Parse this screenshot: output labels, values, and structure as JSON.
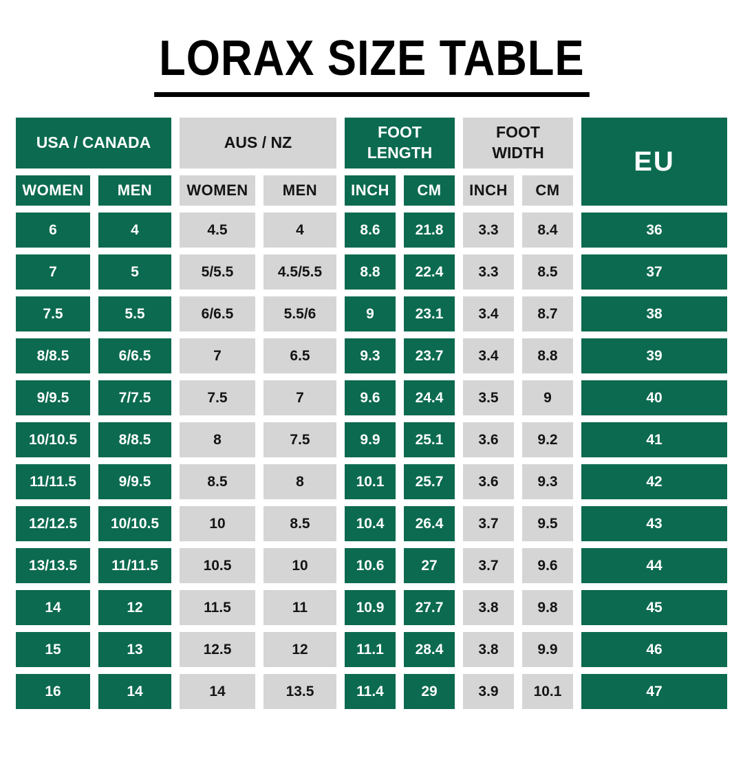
{
  "page": {
    "background": "#FFFFFF"
  },
  "colors": {
    "green": "#0B6A4F",
    "gray": "#D5D5D5",
    "text_on_green": "#FFFFFF",
    "text_on_gray": "#141414",
    "title_color": "#000000"
  },
  "chart_data": {
    "type": "table",
    "title": "LORAX SIZE TABLE",
    "groups": [
      {
        "label": "USA / CANADA",
        "tone": "green",
        "subcolumns": [
          "WOMEN",
          "MEN"
        ]
      },
      {
        "label": "AUS / NZ",
        "tone": "gray",
        "subcolumns": [
          "WOMEN",
          "MEN"
        ]
      },
      {
        "label": "FOOT LENGTH",
        "tone": "green",
        "subcolumns": [
          "INCH",
          "CM"
        ]
      },
      {
        "label": "FOOT WIDTH",
        "tone": "gray",
        "subcolumns": [
          "INCH",
          "CM"
        ]
      },
      {
        "label": "EU",
        "tone": "green",
        "subcolumns": []
      }
    ],
    "column_tones": [
      "green",
      "green",
      "gray",
      "gray",
      "green",
      "green",
      "gray",
      "gray",
      "green"
    ],
    "rows": [
      [
        "6",
        "4",
        "4.5",
        "4",
        "8.6",
        "21.8",
        "3.3",
        "8.4",
        "36"
      ],
      [
        "7",
        "5",
        "5/5.5",
        "4.5/5.5",
        "8.8",
        "22.4",
        "3.3",
        "8.5",
        "37"
      ],
      [
        "7.5",
        "5.5",
        "6/6.5",
        "5.5/6",
        "9",
        "23.1",
        "3.4",
        "8.7",
        "38"
      ],
      [
        "8/8.5",
        "6/6.5",
        "7",
        "6.5",
        "9.3",
        "23.7",
        "3.4",
        "8.8",
        "39"
      ],
      [
        "9/9.5",
        "7/7.5",
        "7.5",
        "7",
        "9.6",
        "24.4",
        "3.5",
        "9",
        "40"
      ],
      [
        "10/10.5",
        "8/8.5",
        "8",
        "7.5",
        "9.9",
        "25.1",
        "3.6",
        "9.2",
        "41"
      ],
      [
        "11/11.5",
        "9/9.5",
        "8.5",
        "8",
        "10.1",
        "25.7",
        "3.6",
        "9.3",
        "42"
      ],
      [
        "12/12.5",
        "10/10.5",
        "10",
        "8.5",
        "10.4",
        "26.4",
        "3.7",
        "9.5",
        "43"
      ],
      [
        "13/13.5",
        "11/11.5",
        "10.5",
        "10",
        "10.6",
        "27",
        "3.7",
        "9.6",
        "44"
      ],
      [
        "14",
        "12",
        "11.5",
        "11",
        "10.9",
        "27.7",
        "3.8",
        "9.8",
        "45"
      ],
      [
        "15",
        "13",
        "12.5",
        "12",
        "11.1",
        "28.4",
        "3.8",
        "9.9",
        "46"
      ],
      [
        "16",
        "14",
        "14",
        "13.5",
        "11.4",
        "29",
        "3.9",
        "10.1",
        "47"
      ]
    ]
  }
}
